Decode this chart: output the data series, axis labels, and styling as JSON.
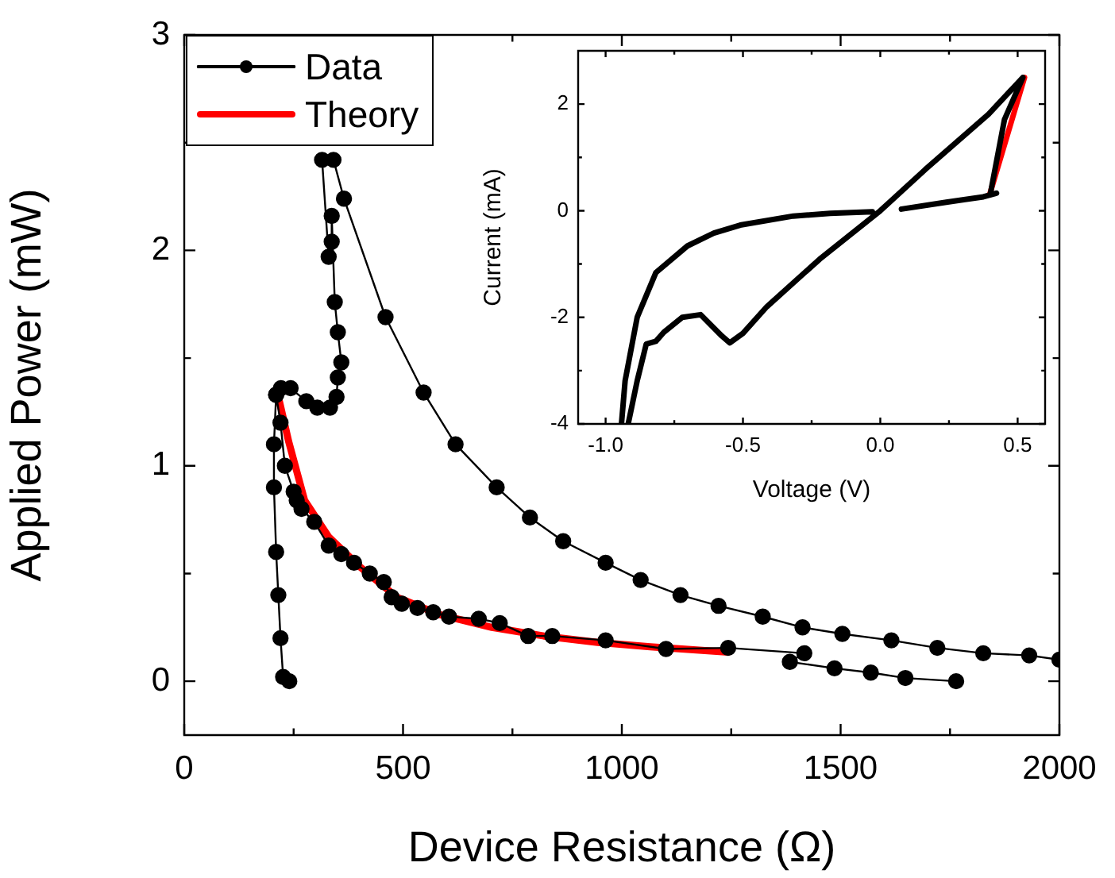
{
  "chart_data": [
    {
      "type": "line",
      "xlabel": "Device Resistance (Ω)",
      "ylabel": "Applied Power (mW)",
      "xlim": [
        0,
        2000
      ],
      "ylim": [
        -0.25,
        3
      ],
      "xticks": [
        0,
        {
          "value": 250,
          "label": null
        },
        500,
        {
          "value": 750,
          "label": null
        },
        1000,
        {
          "value": 1250,
          "label": null
        },
        1500,
        {
          "value": 1750,
          "label": null
        },
        2000
      ],
      "yticks": [
        0,
        {
          "value": 0.5,
          "label": null
        },
        1,
        {
          "value": 1.5,
          "label": null
        },
        2,
        {
          "value": 2.5,
          "label": null
        },
        3
      ],
      "grid": false,
      "legend": "top left",
      "series": [
        {
          "name": "Data",
          "color": "#000000",
          "marker": "circle",
          "x": [
            2000,
            1931,
            1826,
            1721,
            1616,
            1504,
            1413,
            1322,
            1221,
            1134,
            1043,
            963,
            866,
            790,
            714,
            620,
            547,
            460,
            365,
            341,
            null,
            315,
            330,
            337,
            337,
            344,
            351,
            359,
            351,
            348,
            333,
            304,
            279,
            243,
            221,
            210,
            205,
            205,
            210,
            215,
            220,
            226,
            240,
            null,
            210,
            220,
            230,
            250,
            257,
            268,
            297,
            330,
            359,
            388,
            424,
            456,
            474,
            497,
            533,
            569,
            605,
            673,
            721,
            786,
            841,
            963,
            1101,
            1243,
            1417,
            1384,
            1486,
            1569,
            1648,
            1764
          ],
          "values": [
            0.1,
            0.12,
            0.13,
            0.155,
            0.19,
            0.22,
            0.25,
            0.3,
            0.35,
            0.4,
            0.47,
            0.55,
            0.65,
            0.76,
            0.9,
            1.1,
            1.34,
            1.69,
            2.24,
            2.42,
            null,
            2.42,
            1.97,
            2.04,
            2.16,
            1.76,
            1.62,
            1.48,
            1.41,
            1.32,
            1.27,
            1.27,
            1.3,
            1.36,
            1.36,
            1.33,
            1.1,
            0.9,
            0.6,
            0.4,
            0.2,
            0.02,
            0,
            null,
            1.33,
            1.2,
            1.0,
            0.88,
            0.84,
            0.8,
            0.74,
            0.63,
            0.59,
            0.55,
            0.5,
            0.46,
            0.39,
            0.36,
            0.34,
            0.32,
            0.3,
            0.29,
            0.27,
            0.21,
            0.21,
            0.19,
            0.15,
            0.155,
            0.13,
            0.09,
            0.06,
            0.04,
            0.015,
            0
          ]
        },
        {
          "name": "Theory",
          "color": "#ff0000",
          "marker": "none",
          "x": [
            214,
            239,
            275,
            330,
            402,
            486,
            583,
            703,
            822,
            945,
            1065,
            1243
          ],
          "values": [
            1.33,
            1.11,
            0.84,
            0.67,
            0.53,
            0.39,
            0.31,
            0.25,
            0.21,
            0.18,
            0.16,
            0.135
          ]
        }
      ]
    },
    {
      "type": "line",
      "xlabel": "Voltage (V)",
      "ylabel": "Current (mA)",
      "xlim": [
        -1.1,
        0.6
      ],
      "ylim": [
        -4,
        3
      ],
      "xticks": [
        {
          "value": -1,
          "label": "-1.0"
        },
        {
          "value": -0.75,
          "label": null
        },
        {
          "value": -0.5,
          "label": "-0.5"
        },
        {
          "value": -0.25,
          "label": null
        },
        {
          "value": 0,
          "label": "0.0"
        },
        {
          "value": 0.25,
          "label": null
        },
        {
          "value": 0.5,
          "label": "0.5"
        }
      ],
      "yticks": [
        -4,
        {
          "value": -3,
          "label": null
        },
        -2,
        {
          "value": -1,
          "label": null
        },
        0,
        {
          "value": 1,
          "label": null
        },
        2
      ],
      "grid": false,
      "series": [
        {
          "color": "#000000",
          "marker": "none",
          "x": [
            -0.942,
            -0.929,
            -0.885,
            -0.817,
            -0.702,
            -0.606,
            -0.51,
            -0.317,
            -0.183,
            -0.029,
            null,
            0.077,
            0.24,
            0.375,
            0.423,
            0.4,
            0.452,
            0.519,
            0.394,
            0.163,
            0,
            -0.221,
            -0.413,
            -0.5,
            -0.548,
            -0.577,
            -0.654,
            -0.721,
            -0.788,
            -0.817,
            -0.852,
            -0.885,
            -0.917
          ],
          "values": [
            -3.98,
            -3.19,
            -2.0,
            -1.16,
            -0.66,
            -0.42,
            -0.27,
            -0.1,
            -0.05,
            -0.02,
            null,
            0.03,
            0.16,
            0.26,
            0.33,
            0.3,
            1.71,
            2.5,
            1.81,
            0.77,
            0,
            -0.91,
            -1.8,
            -2.3,
            -2.48,
            -2.35,
            -1.95,
            -2.0,
            -2.28,
            -2.45,
            -2.5,
            -3.19,
            -3.98
          ]
        },
        {
          "color": "#ff0000",
          "marker": "none",
          "x": [
            0.398,
            0.525
          ],
          "values": [
            0.3,
            2.5
          ]
        }
      ]
    }
  ]
}
